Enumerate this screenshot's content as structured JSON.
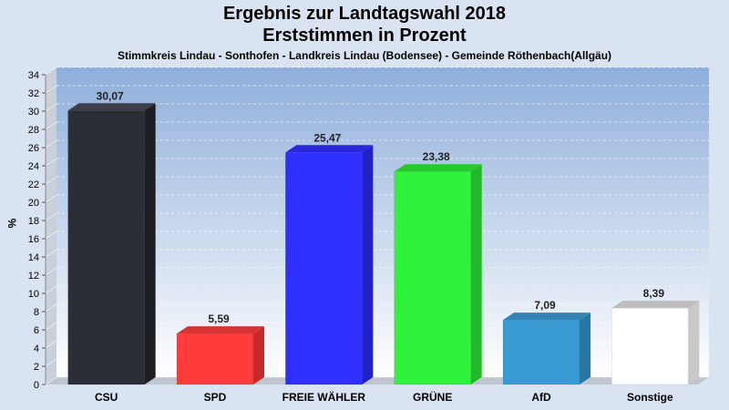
{
  "chart_data": {
    "type": "bar",
    "title": "Ergebnis zur Landtagswahl 2018",
    "subtitle": "Erststimmen in Prozent",
    "caption": "Stimmkreis Lindau - Sonthofen - Landkreis Lindau (Bodensee) - Gemeinde Röthenbach(Allgäu)",
    "ylabel": "%",
    "xlabel": "",
    "ylim": [
      0,
      34
    ],
    "ytick_step": 2,
    "grid": true,
    "categories": [
      "CSU",
      "SPD",
      "FREIE WÄHLER",
      "GRÜNE",
      "AfD",
      "Sonstige"
    ],
    "values": [
      30.07,
      5.59,
      25.47,
      23.38,
      7.09,
      8.39
    ],
    "value_labels": [
      "30,07",
      "5,59",
      "25,47",
      "23,38",
      "7,09",
      "8,39"
    ],
    "colors": [
      "#2b2e36",
      "#ff3b3b",
      "#2f2fff",
      "#2ff23a",
      "#3a9bd2",
      "#ffffff"
    ],
    "side_colors": [
      "#1c1e24",
      "#c42a2a",
      "#2222c4",
      "#22b82a",
      "#2a77a3",
      "#c9c9c9"
    ],
    "top_colors": [
      "#3c3f47",
      "#d63333",
      "#2828d8",
      "#27c92f",
      "#3384b3",
      "#bdbdbd"
    ]
  }
}
